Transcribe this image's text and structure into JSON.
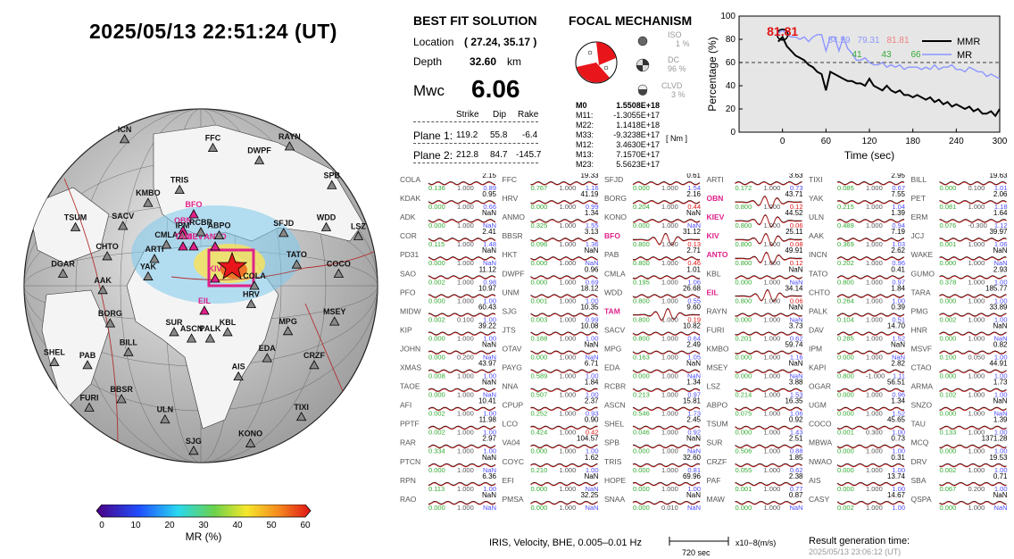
{
  "title": "2025/05/13  22:51:24 (UT)",
  "best_fit": {
    "heading": "BEST FIT SOLUTION",
    "location_label": "Location",
    "location_value": "( 27.24,  35.17 )",
    "depth_label": "Depth",
    "depth_value": "32.60",
    "depth_unit": "km",
    "mw_label": "Mwc",
    "mw_value": "6.06",
    "col_strike": "Strike",
    "col_dip": "Dip",
    "col_rake": "Rake",
    "plane1_label": "Plane 1:",
    "plane1": [
      "119.2",
      "55.8",
      "-6.4"
    ],
    "plane2_label": "Plane 2:",
    "plane2": [
      "212.8",
      "84.7",
      "-145.7"
    ]
  },
  "focal": {
    "heading": "FOCAL MECHANISM",
    "iso_label": "ISO",
    "iso_value": "1 %",
    "dc_label": "DC",
    "dc_value": "96 %",
    "clvd_label": "CLVD",
    "clvd_value": "3 %",
    "moments": [
      {
        "k": "M0",
        "v": "1.5508E+18"
      },
      {
        "k": "M11:",
        "v": "-1.3055E+17"
      },
      {
        "k": "M22:",
        "v": "1.1418E+18"
      },
      {
        "k": "M33:",
        "v": "-9.3238E+17"
      },
      {
        "k": "M12:",
        "v": "3.4630E+17"
      },
      {
        "k": "M13:",
        "v": "7.1570E+17"
      },
      {
        "k": "M23:",
        "v": "5.5623E+17"
      }
    ],
    "unit": "[ Nm ]"
  },
  "colorbar": {
    "label": "MR (%)",
    "ticks": [
      "0",
      "10",
      "20",
      "30",
      "40",
      "50",
      "60"
    ]
  },
  "stations_map": [
    "COLA",
    "BILL",
    "FFC",
    "TIXI",
    "YAK",
    "SFJD",
    "ULN",
    "ICN",
    "HRV",
    "BORG",
    "DWPF",
    "KONO",
    "ARTI",
    "TATO",
    "BBSR",
    "OBN",
    "KIEV",
    "AAK",
    "KIV",
    "SJG",
    "CMLA",
    "BFO",
    "PAB",
    "ANTO",
    "KBL",
    "CHTO",
    "WDD",
    "EIL",
    "IPM",
    "MPG",
    "TAM",
    "RAYN",
    "PALK",
    "SACV",
    "COCO",
    "FURI",
    "RCBR",
    "EDA",
    "DGAR",
    "SPB",
    "ASCN",
    "KMBO",
    "MSEY",
    "SHEL",
    "ABPO",
    "AIS",
    "TSUM",
    "LSZ",
    "SUR",
    "TRIS",
    "CRZF"
  ],
  "chart_data": {
    "type": "line",
    "title": "",
    "xlabel": "Time (sec)",
    "ylabel": "Percentage (%)",
    "xlim": [
      -60,
      300
    ],
    "ylim": [
      0,
      100
    ],
    "xticks": [
      "0",
      "60",
      "120",
      "180",
      "240",
      "300"
    ],
    "yticks": [
      "0",
      "20",
      "40",
      "60",
      "80",
      "100"
    ],
    "threshold": 60,
    "best_value": "81.81",
    "annotations_top": [
      "84.59",
      "79.31",
      "81.81"
    ],
    "annotations_bottom": [
      "41",
      "43",
      "66"
    ],
    "legend": [
      "MMR",
      "MR"
    ],
    "legend_position": "top-right",
    "series": [
      {
        "name": "MMR",
        "x": [
          -6,
          0,
          6,
          12,
          18,
          24,
          30,
          36,
          42,
          48,
          54,
          60,
          66,
          72,
          78,
          84,
          90,
          96,
          102,
          108,
          114,
          120,
          126,
          132,
          138,
          144,
          150,
          156,
          162,
          168,
          174,
          180,
          186,
          192,
          198,
          204,
          210,
          216,
          222,
          228,
          234,
          240,
          246,
          252,
          258,
          264,
          270,
          276,
          282,
          288,
          294,
          300
        ],
        "values": [
          78,
          82,
          74,
          70,
          66,
          64,
          62,
          58,
          56,
          52,
          50,
          36,
          52,
          50,
          48,
          46,
          44,
          44,
          42,
          42,
          40,
          46,
          40,
          38,
          36,
          40,
          36,
          34,
          36,
          32,
          32,
          30,
          32,
          30,
          28,
          30,
          26,
          28,
          24,
          26,
          22,
          24,
          22,
          20,
          22,
          18,
          20,
          16,
          16,
          18,
          14,
          20
        ]
      },
      {
        "name": "MR",
        "x": [
          -6,
          0,
          6,
          12,
          18,
          24,
          30,
          36,
          42,
          48,
          54,
          60,
          66,
          72,
          78,
          84,
          90,
          96,
          102,
          108,
          114,
          120,
          126,
          132,
          138,
          144,
          150,
          156,
          162,
          168,
          174,
          180,
          186,
          192,
          198,
          204,
          210,
          216,
          222,
          228,
          234,
          240,
          246,
          252,
          258,
          264,
          270,
          276,
          282,
          288,
          294,
          300
        ],
        "values": [
          85,
          88,
          84,
          82,
          82,
          80,
          82,
          78,
          82,
          84,
          84,
          70,
          82,
          82,
          70,
          82,
          72,
          68,
          62,
          62,
          64,
          60,
          58,
          58,
          60,
          56,
          58,
          56,
          58,
          54,
          56,
          56,
          56,
          54,
          56,
          54,
          58,
          54,
          56,
          56,
          58,
          54,
          54,
          52,
          56,
          54,
          52,
          52,
          48,
          50,
          48,
          46
        ]
      }
    ]
  },
  "waveforms": [
    [
      "COLA",
      "2.15",
      "0.136",
      "1.000",
      "0.89"
    ],
    [
      "FFC",
      "19.33",
      "0.767",
      "1.000",
      "1.16"
    ],
    [
      "SFJD",
      "0.61",
      "0.000",
      "1.000",
      "1.54"
    ],
    [
      "ARTI",
      "3.63",
      "0.172",
      "1.000",
      "0.73"
    ],
    [
      "TIXI",
      "2.95",
      "0.085",
      "1.000",
      "0.67"
    ],
    [
      "BILL",
      "19.63",
      "0.000",
      "0.100",
      "1.01"
    ],
    [
      "KDAK",
      "0.95",
      "0.000",
      "1.000",
      "0.66"
    ],
    [
      "HRV",
      "41.19",
      "0.000",
      "1.000",
      "0.99"
    ],
    [
      "BORG",
      "2.16",
      "0.204",
      "1.000",
      "0.44"
    ],
    [
      "OBN",
      "43.71",
      "0.800",
      "1.000",
      "0.12"
    ],
    [
      "YAK",
      "7.55",
      "0.215",
      "1.000",
      "1.04"
    ],
    [
      "PET",
      "2.06",
      "0.081",
      "1.000",
      "1.18"
    ],
    [
      "ADK",
      "NaN",
      "0.000",
      "1.000",
      "NaN"
    ],
    [
      "ANMO",
      "1.34",
      "0.325",
      "1.000",
      "1.55"
    ],
    [
      "KONO",
      "NaN",
      "0.000",
      "1.000",
      "NaN"
    ],
    [
      "KIEV",
      "44.52",
      "0.800",
      "1.000",
      "0.06"
    ],
    [
      "ULN",
      "1.39",
      "0.489",
      "1.000",
      "0.94"
    ],
    [
      "ERM",
      "1.64",
      "0.076",
      "-0.300",
      "1.12"
    ],
    [
      "COR",
      "2.41",
      "0.115",
      "1.000",
      "1.48"
    ],
    [
      "BBSR",
      "3.13",
      "0.096",
      "1.000",
      "1.36"
    ],
    [
      "BFO",
      "31.12",
      "0.800",
      "1.000",
      "0.13"
    ],
    [
      "KIV",
      "25.11",
      "0.800",
      "1.000",
      "0.08"
    ],
    [
      "AAK",
      "7.19",
      "0.369",
      "1.000",
      "1.03"
    ],
    [
      "JCJ",
      "39.97",
      "0.001",
      "1.000",
      "1.06"
    ],
    [
      "PD31",
      "NaN",
      "0.000",
      "1.000",
      "NaN"
    ],
    [
      "HKT",
      "NaN",
      "0.000",
      "1.000",
      "NaN"
    ],
    [
      "PAB",
      "2.71",
      "0.800",
      "1.000",
      "0.46"
    ],
    [
      "ANTO",
      "49.91",
      "0.800",
      "1.000",
      "0.12"
    ],
    [
      "INCN",
      "2.62",
      "0.202",
      "1.000",
      "0.96"
    ],
    [
      "WAKE",
      "NaN",
      "0.000",
      "1.000",
      "NaN"
    ],
    [
      "SAO",
      "11.12",
      "0.002",
      "1.000",
      "0.98"
    ],
    [
      "DWPF",
      "0.96",
      "0.000",
      "1.000",
      "0.69"
    ],
    [
      "CMLA",
      "1.01",
      "0.195",
      "1.000",
      "1.06"
    ],
    [
      "KBL",
      "NaN",
      "0.000",
      "1.000",
      "NaN"
    ],
    [
      "TATO",
      "0.41",
      "0.800",
      "1.000",
      "0.97"
    ],
    [
      "GUMO",
      "2.93",
      "0.378",
      "1.000",
      "1.00"
    ],
    [
      "PFO",
      "10.97",
      "0.000",
      "1.000",
      "1.00"
    ],
    [
      "UNM",
      "18.12",
      "0.001",
      "1.000",
      "1.00"
    ],
    [
      "WDD",
      "26.68",
      "0.800",
      "1.000",
      "0.55"
    ],
    [
      "EIL",
      "34.14",
      "0.800",
      "1.000",
      "0.06"
    ],
    [
      "CHTO",
      "1.84",
      "0.264",
      "1.000",
      "1.00"
    ],
    [
      "TARA",
      "185.77",
      "0.000",
      "1.000",
      "1.00"
    ],
    [
      "MIDW",
      "60.43",
      "0.002",
      "0.100",
      "1.00"
    ],
    [
      "SJG",
      "10.35",
      "0.003",
      "1.000",
      "0.99"
    ],
    [
      "TAM",
      "9.60",
      "0.800",
      "1.000",
      "0.19"
    ],
    [
      "RAYN",
      "NaN",
      "0.000",
      "1.000",
      "NaN"
    ],
    [
      "PALK",
      "0.39",
      "0.104",
      "1.000",
      "0.51"
    ],
    [
      "PMG",
      "33.89",
      "0.002",
      "1.000",
      "1.00"
    ],
    [
      "KIP",
      "39.22",
      "0.000",
      "1.000",
      "1.00"
    ],
    [
      "JTS",
      "10.08",
      "0.188",
      "1.000",
      "1.00"
    ],
    [
      "SACV",
      "10.82",
      "0.800",
      "1.000",
      "0.64"
    ],
    [
      "FURI",
      "3.73",
      "0.201",
      "1.000",
      "0.62"
    ],
    [
      "DAV",
      "14.70",
      "0.285",
      "1.000",
      "1.52"
    ],
    [
      "HNR",
      "NaN",
      "0.000",
      "1.000",
      "NaN"
    ],
    [
      "JOHN",
      "NaN",
      "0.000",
      "0.200",
      "NaN"
    ],
    [
      "OTAV",
      "NaN",
      "0.000",
      "1.000",
      "NaN"
    ],
    [
      "MPG",
      "2.49",
      "0.163",
      "1.000",
      "1.05"
    ],
    [
      "KMBO",
      "59.74",
      "0.000",
      "1.000",
      "1.16"
    ],
    [
      "IPM",
      "NaN",
      "0.000",
      "1.000",
      "NaN"
    ],
    [
      "MSVF",
      "0.82",
      "0.100",
      "0.050",
      "1.00"
    ],
    [
      "XMAS",
      "43.97",
      "0.008",
      "1.000",
      "1.00"
    ],
    [
      "PAYG",
      "6.71",
      "0.589",
      "1.000",
      "1.00"
    ],
    [
      "EDA",
      "NaN",
      "0.000",
      "1.000",
      "NaN"
    ],
    [
      "MSEY",
      "NaN",
      "0.000",
      "1.000",
      "NaN"
    ],
    [
      "KAPI",
      "2.82",
      "0.800",
      "-1.000",
      "1.11"
    ],
    [
      "CTAO",
      "44.91",
      "0.000",
      "1.000",
      "1.00"
    ],
    [
      "TAOE",
      "NaN",
      "0.000",
      "1.000",
      "NaN"
    ],
    [
      "NNA",
      "1.84",
      "0.507",
      "1.000",
      "1.00"
    ],
    [
      "RCBR",
      "1.34",
      "0.213",
      "1.000",
      "0.97"
    ],
    [
      "LSZ",
      "3.88",
      "0.214",
      "1.000",
      "1.53"
    ],
    [
      "OGAR",
      "56.51",
      "0.000",
      "1.000",
      "0.96"
    ],
    [
      "ARMA",
      "1.73",
      "0.102",
      "1.000",
      "1.00"
    ],
    [
      "AFI",
      "10.41",
      "0.002",
      "1.000",
      "1.00"
    ],
    [
      "CPUP",
      "2.37",
      "0.252",
      "1.000",
      "0.93"
    ],
    [
      "ASCN",
      "15.81",
      "0.546",
      "1.000",
      "1.73"
    ],
    [
      "ABPO",
      "16.35",
      "0.075",
      "1.000",
      "1.06"
    ],
    [
      "UGM",
      "1.34",
      "0.000",
      "1.000",
      "1.52"
    ],
    [
      "SNZO",
      "NaN",
      "0.000",
      "1.000",
      "NaN"
    ],
    [
      "PPTF",
      "11.98",
      "0.002",
      "1.000",
      "1.00"
    ],
    [
      "LCO",
      "0.90",
      "0.424",
      "1.000",
      "0.42"
    ],
    [
      "SHEL",
      "2.45",
      "0.046",
      "1.000",
      "0.92"
    ],
    [
      "TSUM",
      "0.92",
      "0.000",
      "1.000",
      "1.43"
    ],
    [
      "COCO",
      "45.65",
      "0.001",
      "0.300",
      "1.00"
    ],
    [
      "TAU",
      "1.39",
      "0.133",
      "1.000",
      "1.00"
    ],
    [
      "RAR",
      "2.97",
      "0.334",
      "1.000",
      "1.00"
    ],
    [
      "VA04",
      "104.57",
      "0.000",
      "1.000",
      "1.00"
    ],
    [
      "SPB",
      "NaN",
      "0.000",
      "1.000",
      "NaN"
    ],
    [
      "SUR",
      "2.51",
      "0.506",
      "1.000",
      "0.88"
    ],
    [
      "MBWA",
      "0.73",
      "0.000",
      "1.000",
      "1.00"
    ],
    [
      "MCQ",
      "1371.28",
      "0.000",
      "1.000",
      "1.00"
    ],
    [
      "PTCN",
      "NaN",
      "0.000",
      "1.000",
      "NaN"
    ],
    [
      "COYC",
      "1.62",
      "0.210",
      "1.000",
      "1.00"
    ],
    [
      "TRIS",
      "32.60",
      "0.000",
      "1.000",
      "0.81"
    ],
    [
      "CRZF",
      "1.85",
      "0.055",
      "1.000",
      "0.62"
    ],
    [
      "NWAO",
      "0.31",
      "0.000",
      "1.000",
      "1.00"
    ],
    [
      "DRV",
      "19.53",
      "0.002",
      "1.000",
      "1.00"
    ],
    [
      "RPN",
      "6.36",
      "0.113",
      "1.000",
      "1.00"
    ],
    [
      "EFI",
      "NaN",
      "0.000",
      "1.000",
      "NaN"
    ],
    [
      "HOPE",
      "69.96",
      "0.000",
      "1.000",
      "1.00"
    ],
    [
      "PAF",
      "2.38",
      "0.001",
      "1.000",
      "0.77"
    ],
    [
      "AIS",
      "13.74",
      "0.000",
      "1.000",
      "1.00"
    ],
    [
      "SBA",
      "0.71",
      "0.067",
      "0.200",
      "1.00"
    ],
    [
      "RAO",
      "NaN",
      "0.000",
      "1.000",
      "NaN"
    ],
    [
      "PMSA",
      "32.25",
      "0.000",
      "1.000",
      "NaN"
    ],
    [
      "SNAA",
      "NaN",
      "0.000",
      "0.010",
      "NaN"
    ],
    [
      "MAW",
      "0.87",
      "0.000",
      "1.000",
      "NaN"
    ],
    [
      "CASY",
      "14.67",
      "0.002",
      "1.000",
      "1.00"
    ],
    [
      "QSPA",
      "NaN",
      "0.000",
      "1.000",
      "NaN"
    ]
  ],
  "highlight_stations": [
    "OBN",
    "KIEV",
    "BFO",
    "KIV",
    "ANTO",
    "EIL",
    "TAM"
  ],
  "footer": {
    "info": "IRIS, Velocity,   BHE, 0.005–0.01 Hz",
    "scale_time": "720 sec",
    "scale_amp": "x10−8(m/s)",
    "gen_label": "Result generation time:",
    "gen_time": "2025/05/13 23:06:12 (UT)"
  }
}
